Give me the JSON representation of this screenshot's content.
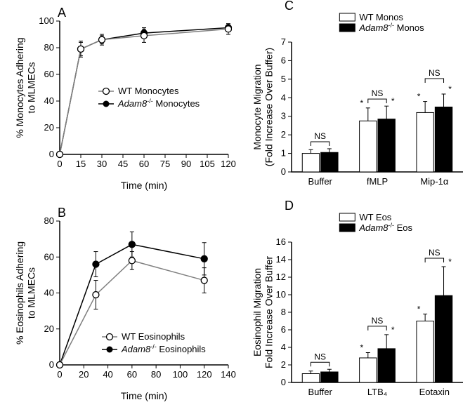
{
  "colors": {
    "bg": "#ffffff",
    "axis": "#000000",
    "line_wt": "#808080",
    "line_ko": "#000000",
    "marker_open_fill": "#ffffff",
    "marker_open_stroke": "#000000",
    "marker_solid": "#000000",
    "bar_wt": "#ffffff",
    "bar_ko": "#000000"
  },
  "panelA": {
    "label": "A",
    "type": "line",
    "x_title": "Time (min)",
    "y_title_line1": "% Monocytes Adhering",
    "y_title_line2": "to MLMECs",
    "legend_wt": "WT Monocytes",
    "legend_ko_prefix": "Adam8",
    "legend_ko_sup": "-/-",
    "legend_ko_suffix": " Monocytes",
    "xlim": [
      0,
      120
    ],
    "xticks": [
      0,
      15,
      30,
      45,
      60,
      75,
      90,
      105,
      120
    ],
    "ylim": [
      0,
      100
    ],
    "yticks": [
      0,
      20,
      40,
      60,
      80,
      100
    ],
    "series": {
      "wt": {
        "x": [
          0,
          15,
          30,
          60,
          120
        ],
        "y": [
          0,
          79,
          86,
          89,
          94
        ],
        "err": [
          0,
          6,
          4,
          5,
          4
        ]
      },
      "ko": {
        "x": [
          0,
          15,
          30,
          60,
          120
        ],
        "y": [
          0,
          79,
          86,
          91,
          95
        ],
        "err": [
          0,
          5,
          3,
          4,
          3
        ]
      }
    }
  },
  "panelB": {
    "label": "B",
    "type": "line",
    "x_title": "Time (min)",
    "y_title_line1": "% Eosinophils Adhering",
    "y_title_line2": "to MLMECs",
    "legend_wt": "WT Eosinophils",
    "legend_ko_prefix": "Adam8",
    "legend_ko_sup": "-/-",
    "legend_ko_suffix": " Eosinophils",
    "xlim": [
      0,
      140
    ],
    "xticks": [
      0,
      20,
      40,
      60,
      80,
      100,
      120,
      140
    ],
    "ylim": [
      0,
      80
    ],
    "yticks": [
      0,
      20,
      40,
      60,
      80
    ],
    "series": {
      "wt": {
        "x": [
          0,
          30,
          60,
          120
        ],
        "y": [
          0,
          39,
          58,
          47
        ],
        "err": [
          0,
          8,
          5,
          7
        ]
      },
      "ko": {
        "x": [
          0,
          30,
          60,
          120
        ],
        "y": [
          0,
          56,
          67,
          59
        ],
        "err": [
          0,
          7,
          7,
          9
        ]
      }
    }
  },
  "panelC": {
    "label": "C",
    "type": "bar",
    "y_title_line1": "Monocyte Migration",
    "y_title_line2": "(Fold Increase Over Buffer)",
    "legend_wt": "WT Monos",
    "legend_ko_prefix": "Adam8",
    "legend_ko_sup": "-/-",
    "legend_ko_suffix": " Monos",
    "categories": [
      "Buffer",
      "fMLP",
      "Mip-1α"
    ],
    "ylim": [
      0,
      7
    ],
    "yticks": [
      0,
      1,
      2,
      3,
      4,
      5,
      6,
      7
    ],
    "wt": {
      "y": [
        1.0,
        2.75,
        3.2
      ],
      "err": [
        0.2,
        0.7,
        0.6
      ]
    },
    "ko": {
      "y": [
        1.05,
        2.85,
        3.5
      ],
      "err": [
        0.2,
        0.7,
        0.7
      ]
    },
    "ns_label": "NS",
    "star": "*"
  },
  "panelD": {
    "label": "D",
    "type": "bar",
    "y_title_line1": "Eosinophil Migration",
    "y_title_line2": "Fold Increase Over Buffer",
    "legend_wt": "WT Eos",
    "legend_ko_prefix": "Adam8",
    "legend_ko_sup": "-/-",
    "legend_ko_suffix": " Eos",
    "categories": [
      "Buffer",
      "LTB₄",
      "Eotaxin"
    ],
    "ylim": [
      0,
      16
    ],
    "yticks": [
      0,
      2,
      4,
      6,
      8,
      10,
      12,
      14,
      16
    ],
    "wt": {
      "y": [
        1.0,
        2.8,
        7.0
      ],
      "err": [
        0.3,
        0.6,
        0.8
      ]
    },
    "ko": {
      "y": [
        1.2,
        3.85,
        9.9
      ],
      "err": [
        0.3,
        1.6,
        3.3
      ]
    },
    "ns_label": "NS",
    "star": "*"
  }
}
